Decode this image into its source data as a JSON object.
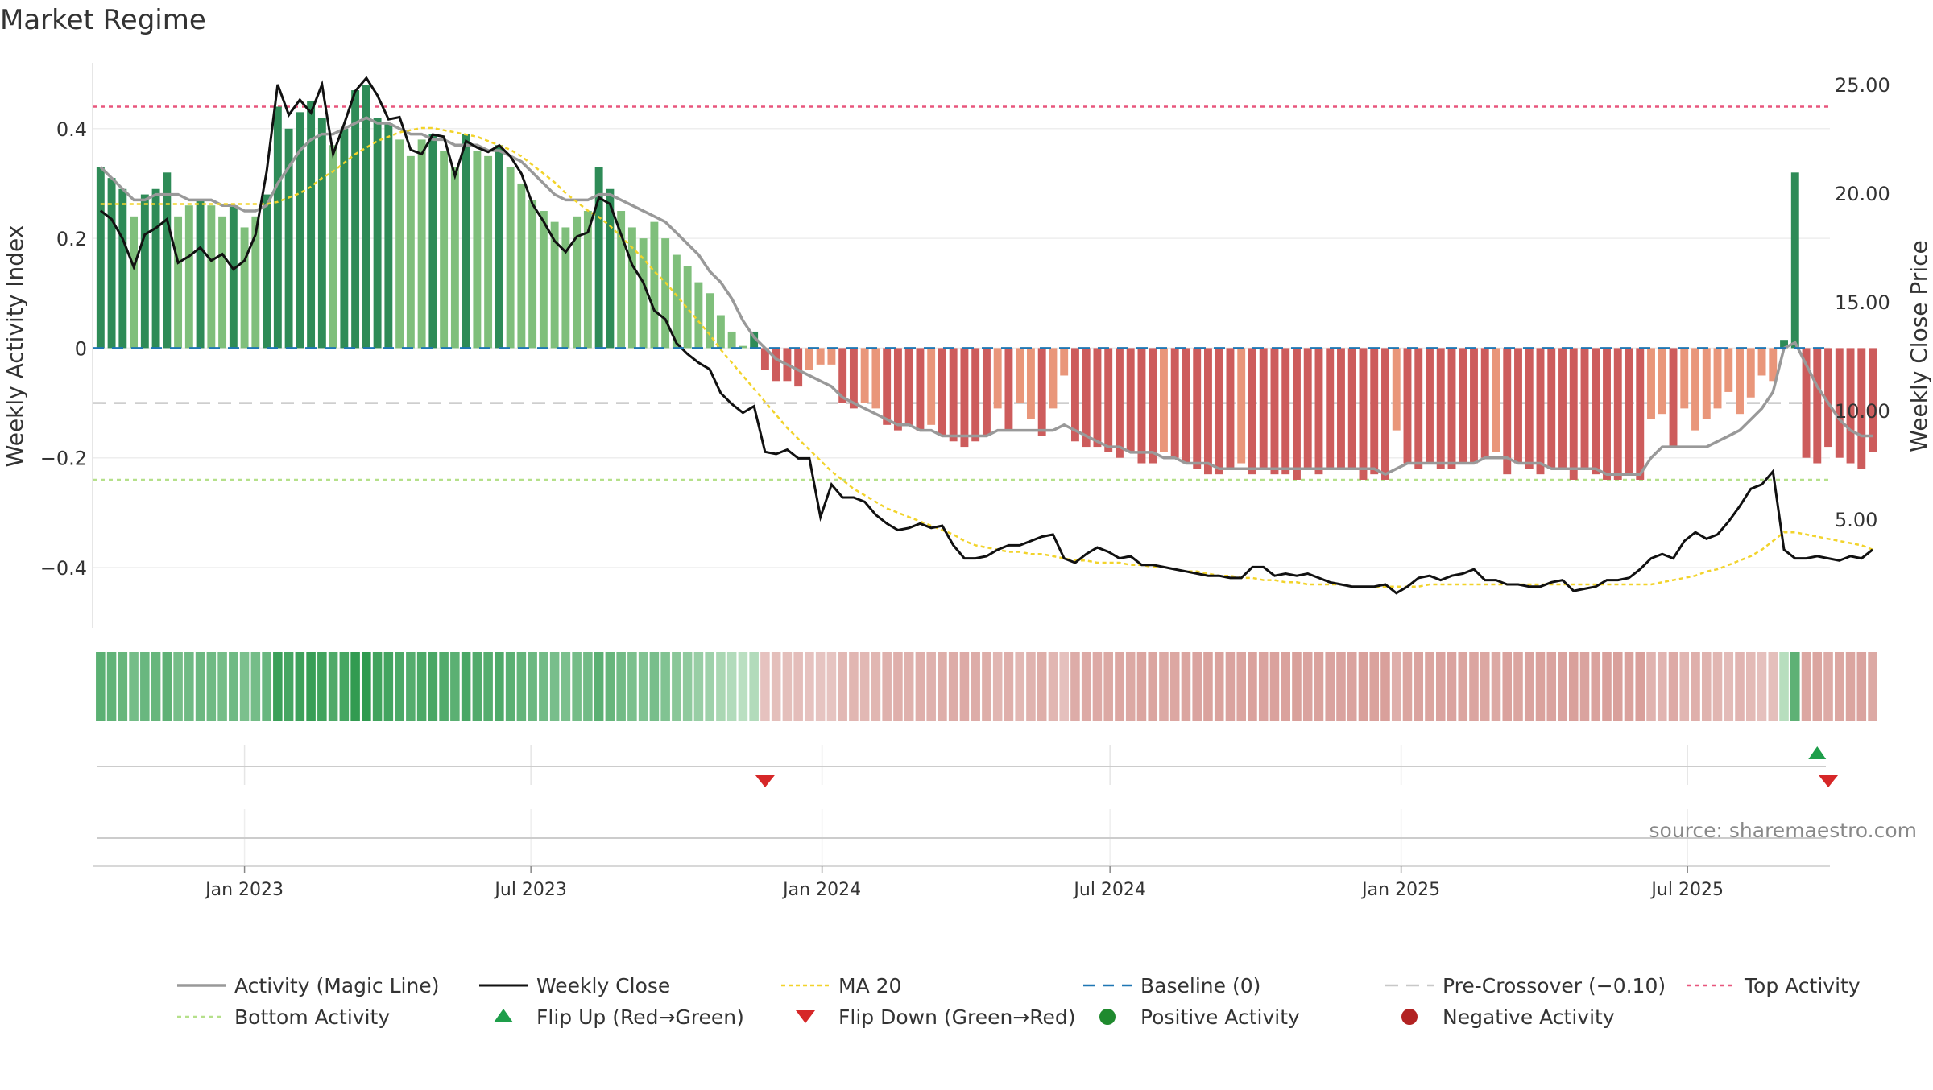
{
  "chart_data": {
    "type": "bar",
    "title": "Market Regime",
    "source": "source: sharemaestro.com",
    "ylabel_left": "Weekly Activity Index",
    "ylabel_right": "Weekly Close Price",
    "ylim_left": [
      -0.51,
      0.52
    ],
    "ylim_right": [
      0,
      26
    ],
    "yticks_left": [
      {
        "v": 0.4,
        "label": "0.4"
      },
      {
        "v": 0.2,
        "label": "0.2"
      },
      {
        "v": 0,
        "label": "0"
      },
      {
        "v": -0.2,
        "label": "−0.2"
      },
      {
        "v": -0.4,
        "label": "−0.4"
      }
    ],
    "yticks_right": [
      {
        "v": 25,
        "label": "25.00"
      },
      {
        "v": 20,
        "label": "20.00"
      },
      {
        "v": 15,
        "label": "15.00"
      },
      {
        "v": 10,
        "label": "10.00"
      },
      {
        "v": 5,
        "label": "5.00"
      }
    ],
    "start_date": "2022-10-02",
    "x_range": [
      "2022-09-27",
      "2025-09-29"
    ],
    "xticks": [
      {
        "date": "2023-01-01",
        "label": "Jan 2023"
      },
      {
        "date": "2023-07-01",
        "label": "Jul 2023"
      },
      {
        "date": "2024-01-01",
        "label": "Jan 2024"
      },
      {
        "date": "2024-07-01",
        "label": "Jul 2024"
      },
      {
        "date": "2025-01-01",
        "label": "Jan 2025"
      },
      {
        "date": "2025-07-01",
        "label": "Jul 2025"
      }
    ],
    "levels": {
      "baseline": 0,
      "pre_crossover": -0.1,
      "top": 0.44,
      "bottom": -0.24
    },
    "colors": {
      "green_strong": "#2e8b57",
      "green_light": "#7fbf7b",
      "red_strong": "#cd5c5c",
      "red_light": "#e9967a",
      "magic_line": "#999999",
      "close": "#111111",
      "ma20": "#f2d32b",
      "baseline": "#1f77b4",
      "pre_crossover": "#c8c8c8",
      "top": "#e8567d",
      "bottom": "#b5e08a",
      "flip_up": "#1e9e4a",
      "flip_down": "#d62728",
      "positive": "#1f8a2e",
      "negative": "#b22222"
    },
    "activity": [
      0.33,
      0.31,
      0.29,
      0.24,
      0.28,
      0.29,
      0.32,
      0.24,
      0.26,
      0.27,
      0.26,
      0.24,
      0.26,
      0.22,
      0.24,
      0.28,
      0.44,
      0.4,
      0.43,
      0.45,
      0.42,
      0.37,
      0.4,
      0.47,
      0.48,
      0.42,
      0.41,
      0.38,
      0.35,
      0.38,
      0.39,
      0.36,
      0.33,
      0.39,
      0.36,
      0.35,
      0.37,
      0.33,
      0.3,
      0.27,
      0.25,
      0.23,
      0.22,
      0.24,
      0.25,
      0.33,
      0.29,
      0.25,
      0.22,
      0.2,
      0.23,
      0.2,
      0.17,
      0.15,
      0.12,
      0.1,
      0.06,
      0.03,
      0.004,
      0.03,
      -0.04,
      -0.06,
      -0.06,
      -0.07,
      -0.04,
      -0.03,
      -0.03,
      -0.1,
      -0.11,
      -0.1,
      -0.11,
      -0.14,
      -0.15,
      -0.14,
      -0.15,
      -0.14,
      -0.16,
      -0.17,
      -0.18,
      -0.17,
      -0.16,
      -0.11,
      -0.15,
      -0.1,
      -0.13,
      -0.16,
      -0.11,
      -0.05,
      -0.17,
      -0.18,
      -0.18,
      -0.19,
      -0.2,
      -0.19,
      -0.21,
      -0.21,
      -0.19,
      -0.2,
      -0.21,
      -0.22,
      -0.23,
      -0.23,
      -0.22,
      -0.21,
      -0.23,
      -0.22,
      -0.23,
      -0.23,
      -0.24,
      -0.22,
      -0.23,
      -0.22,
      -0.22,
      -0.22,
      -0.24,
      -0.23,
      -0.24,
      -0.15,
      -0.21,
      -0.22,
      -0.21,
      -0.22,
      -0.22,
      -0.21,
      -0.21,
      -0.2,
      -0.19,
      -0.23,
      -0.21,
      -0.22,
      -0.23,
      -0.22,
      -0.22,
      -0.24,
      -0.22,
      -0.23,
      -0.24,
      -0.24,
      -0.23,
      -0.24,
      -0.13,
      -0.12,
      -0.18,
      -0.11,
      -0.15,
      -0.13,
      -0.11,
      -0.08,
      -0.12,
      -0.09,
      -0.05,
      -0.06,
      0.015,
      0.32,
      -0.2,
      -0.21,
      -0.18,
      -0.2,
      -0.21,
      -0.22,
      -0.19
    ],
    "magic_line": [
      0.33,
      0.31,
      0.29,
      0.27,
      0.27,
      0.28,
      0.28,
      0.28,
      0.27,
      0.27,
      0.27,
      0.26,
      0.26,
      0.25,
      0.25,
      0.26,
      0.3,
      0.33,
      0.36,
      0.38,
      0.39,
      0.39,
      0.4,
      0.41,
      0.42,
      0.41,
      0.41,
      0.4,
      0.39,
      0.39,
      0.38,
      0.38,
      0.37,
      0.37,
      0.37,
      0.36,
      0.36,
      0.35,
      0.34,
      0.32,
      0.3,
      0.28,
      0.27,
      0.27,
      0.27,
      0.28,
      0.28,
      0.27,
      0.26,
      0.25,
      0.24,
      0.23,
      0.21,
      0.19,
      0.17,
      0.14,
      0.12,
      0.09,
      0.05,
      0.02,
      0.0,
      -0.02,
      -0.03,
      -0.04,
      -0.05,
      -0.06,
      -0.07,
      -0.09,
      -0.1,
      -0.11,
      -0.12,
      -0.13,
      -0.14,
      -0.14,
      -0.15,
      -0.15,
      -0.16,
      -0.16,
      -0.16,
      -0.16,
      -0.16,
      -0.15,
      -0.15,
      -0.15,
      -0.15,
      -0.15,
      -0.15,
      -0.14,
      -0.15,
      -0.16,
      -0.17,
      -0.18,
      -0.18,
      -0.19,
      -0.19,
      -0.19,
      -0.2,
      -0.2,
      -0.21,
      -0.21,
      -0.21,
      -0.22,
      -0.22,
      -0.22,
      -0.22,
      -0.22,
      -0.22,
      -0.22,
      -0.22,
      -0.22,
      -0.22,
      -0.22,
      -0.22,
      -0.22,
      -0.22,
      -0.22,
      -0.23,
      -0.22,
      -0.21,
      -0.21,
      -0.21,
      -0.21,
      -0.21,
      -0.21,
      -0.21,
      -0.2,
      -0.2,
      -0.2,
      -0.21,
      -0.21,
      -0.21,
      -0.22,
      -0.22,
      -0.22,
      -0.22,
      -0.22,
      -0.23,
      -0.23,
      -0.23,
      -0.23,
      -0.2,
      -0.18,
      -0.18,
      -0.18,
      -0.18,
      -0.18,
      -0.17,
      -0.16,
      -0.15,
      -0.13,
      -0.11,
      -0.08,
      0.0,
      0.01,
      -0.03,
      -0.07,
      -0.1,
      -0.13,
      -0.15,
      -0.16,
      -0.16
    ],
    "close": [
      19.2,
      18.8,
      17.9,
      16.6,
      18.1,
      18.4,
      18.8,
      16.8,
      17.1,
      17.5,
      16.9,
      17.2,
      16.5,
      16.9,
      18.1,
      21.0,
      25.0,
      23.6,
      24.3,
      23.7,
      25.0,
      21.8,
      23.2,
      24.7,
      25.3,
      24.5,
      23.4,
      23.5,
      22.0,
      21.8,
      22.7,
      22.6,
      20.8,
      22.4,
      22.1,
      21.9,
      22.2,
      21.7,
      20.9,
      19.5,
      18.7,
      17.8,
      17.3,
      18.0,
      18.2,
      19.8,
      19.5,
      18.1,
      16.7,
      15.9,
      14.6,
      14.2,
      13.1,
      12.6,
      12.2,
      11.9,
      10.8,
      10.3,
      9.9,
      10.2,
      8.1,
      8.0,
      8.2,
      7.8,
      7.8,
      5.1,
      6.6,
      6.0,
      6.0,
      5.8,
      5.2,
      4.8,
      4.5,
      4.6,
      4.8,
      4.6,
      4.7,
      3.8,
      3.2,
      3.2,
      3.3,
      3.6,
      3.8,
      3.8,
      4.0,
      4.2,
      4.3,
      3.2,
      3.0,
      3.4,
      3.7,
      3.5,
      3.2,
      3.3,
      2.9,
      2.9,
      2.8,
      2.7,
      2.6,
      2.5,
      2.4,
      2.4,
      2.3,
      2.3,
      2.8,
      2.8,
      2.4,
      2.5,
      2.4,
      2.5,
      2.3,
      2.1,
      2.0,
      1.9,
      1.9,
      1.9,
      2.0,
      1.6,
      1.9,
      2.3,
      2.4,
      2.2,
      2.4,
      2.5,
      2.7,
      2.2,
      2.2,
      2.0,
      2.0,
      1.9,
      1.9,
      2.1,
      2.2,
      1.7,
      1.8,
      1.9,
      2.2,
      2.2,
      2.3,
      2.7,
      3.2,
      3.4,
      3.2,
      4.0,
      4.4,
      4.1,
      4.3,
      4.9,
      5.6,
      6.4,
      6.6,
      7.2,
      3.6,
      3.2,
      3.2,
      3.3,
      3.2,
      3.1,
      3.3,
      3.2,
      3.6
    ],
    "ma20": [
      19.5,
      19.5,
      19.5,
      19.5,
      19.5,
      19.5,
      19.5,
      19.5,
      19.5,
      19.5,
      19.5,
      19.5,
      19.5,
      19.5,
      19.5,
      19.5,
      19.6,
      19.8,
      20.0,
      20.3,
      20.7,
      21.0,
      21.4,
      21.8,
      22.1,
      22.4,
      22.6,
      22.8,
      22.9,
      23.0,
      23.0,
      22.9,
      22.8,
      22.7,
      22.6,
      22.4,
      22.2,
      22.0,
      21.7,
      21.3,
      20.9,
      20.5,
      20.0,
      19.6,
      19.2,
      18.9,
      18.5,
      18.0,
      17.5,
      17.0,
      16.4,
      15.9,
      15.3,
      14.7,
      14.1,
      13.5,
      12.8,
      12.2,
      11.6,
      11.0,
      10.4,
      9.8,
      9.2,
      8.7,
      8.2,
      7.7,
      7.2,
      6.8,
      6.4,
      6.1,
      5.8,
      5.5,
      5.3,
      5.1,
      4.9,
      4.7,
      4.5,
      4.3,
      4.0,
      3.8,
      3.7,
      3.6,
      3.5,
      3.5,
      3.4,
      3.4,
      3.3,
      3.2,
      3.1,
      3.1,
      3.0,
      3.0,
      3.0,
      2.9,
      2.9,
      2.8,
      2.8,
      2.7,
      2.6,
      2.6,
      2.5,
      2.4,
      2.4,
      2.3,
      2.3,
      2.2,
      2.2,
      2.1,
      2.1,
      2.0,
      2.0,
      2.0,
      2.0,
      1.9,
      1.9,
      1.9,
      1.9,
      1.9,
      1.9,
      1.9,
      2.0,
      2.0,
      2.0,
      2.0,
      2.0,
      2.0,
      2.0,
      2.0,
      2.0,
      2.0,
      2.0,
      2.0,
      2.0,
      2.0,
      2.0,
      2.0,
      2.0,
      2.0,
      2.0,
      2.0,
      2.0,
      2.1,
      2.2,
      2.3,
      2.4,
      2.6,
      2.7,
      2.9,
      3.1,
      3.3,
      3.6,
      4.0,
      4.4,
      4.4,
      4.3,
      4.2,
      4.1,
      4.0,
      3.9,
      3.8,
      3.6
    ],
    "flip_up": [
      155
    ],
    "flip_down": [
      60,
      156
    ],
    "legend": [
      {
        "label": "Activity (Magic Line)",
        "style": "magic"
      },
      {
        "label": "Weekly Close",
        "style": "close"
      },
      {
        "label": "MA 20",
        "style": "ma20"
      },
      {
        "label": "Baseline (0)",
        "style": "baseline"
      },
      {
        "label": "Pre-Crossover (−0.10)",
        "style": "pre"
      },
      {
        "label": "Top Activity",
        "style": "top"
      },
      {
        "label": "Bottom Activity",
        "style": "bottom"
      },
      {
        "label": "Flip Up (Red→Green)",
        "style": "flipup"
      },
      {
        "label": "Flip Down (Green→Red)",
        "style": "flipdown"
      },
      {
        "label": "Positive Activity",
        "style": "pos"
      },
      {
        "label": "Negative Activity",
        "style": "neg"
      }
    ]
  }
}
